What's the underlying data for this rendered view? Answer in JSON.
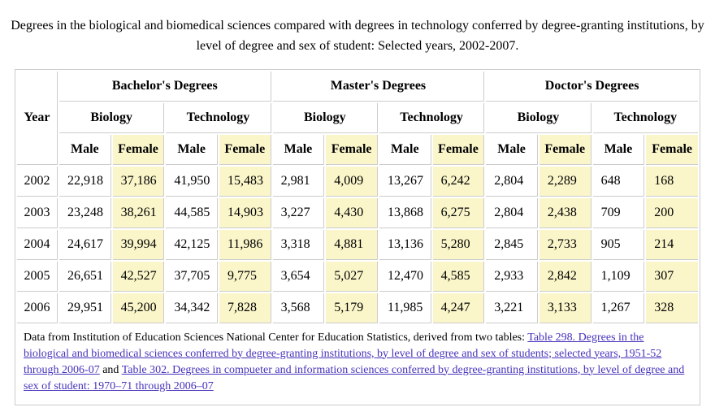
{
  "title": "Degrees in the biological and biomedical sciences compared with degrees in technology conferred by degree-granting institutions, by level of degree and sex of student: Selected years, 2002-2007.",
  "table": {
    "year_header": "Year",
    "degree_groups": [
      "Bachelor's Degrees",
      "Master's Degrees",
      "Doctor's Degrees"
    ],
    "field_groups": [
      "Biology",
      "Technology",
      "Biology",
      "Technology",
      "Biology",
      "Technology"
    ],
    "sex_columns": [
      "Male",
      "Female"
    ],
    "rows": [
      {
        "year": "2002",
        "values": [
          "22,918",
          "37,186",
          "41,950",
          "15,483",
          "2,981",
          "4,009",
          "13,267",
          "6,242",
          "2,804",
          "2,289",
          "648",
          "168"
        ]
      },
      {
        "year": "2003",
        "values": [
          "23,248",
          "38,261",
          "44,585",
          "14,903",
          "3,227",
          "4,430",
          "13,868",
          "6,275",
          "2,804",
          "2,438",
          "709",
          "200"
        ]
      },
      {
        "year": "2004",
        "values": [
          "24,617",
          "39,994",
          "42,125",
          "11,986",
          "3,318",
          "4,881",
          "13,136",
          "5,280",
          "2,845",
          "2,733",
          "905",
          "214"
        ]
      },
      {
        "year": "2005",
        "values": [
          "26,651",
          "42,527",
          "37,705",
          "9,775",
          "3,654",
          "5,027",
          "12,470",
          "4,585",
          "2,933",
          "2,842",
          "1,109",
          "307"
        ]
      },
      {
        "year": "2006",
        "values": [
          "29,951",
          "45,200",
          "34,342",
          "7,828",
          "3,568",
          "5,179",
          "11,985",
          "4,247",
          "3,221",
          "3,133",
          "1,267",
          "328"
        ]
      }
    ]
  },
  "footer": {
    "prefix": "Data from Institution of Education Sciences National Center for Education Statistics, derived from two tables: ",
    "link1": "Table 298. Degrees in the biological and biomedical sciences conferred by degree-granting institutions, by level of degree and sex of students; selected years, 1951-52 through 2006-07",
    "separator": " and ",
    "link2": "Table 302. Degrees in compueter and information sciences conferred by degree-granting institutions, by level of degree and sex of student: 1970–71 through 2006–07"
  },
  "colors": {
    "female_highlight": "#faf6ca",
    "border": "#cccccc",
    "link": "#4433bb"
  }
}
